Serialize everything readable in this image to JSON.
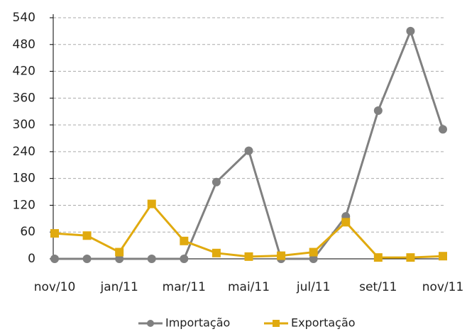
{
  "chart_data": {
    "type": "line",
    "categories": [
      "nov/10",
      null,
      "jan/11",
      null,
      "mar/11",
      null,
      "mai/11",
      null,
      "jul/11",
      null,
      "set/11",
      null,
      "nov/11"
    ],
    "series": [
      {
        "name": "Importação",
        "color": "#808080",
        "marker": "circle",
        "values": [
          0,
          0,
          0,
          0,
          0,
          172,
          242,
          0,
          0,
          95,
          332,
          510,
          290
        ]
      },
      {
        "name": "Exportação",
        "color": "#e0aa0f",
        "marker": "square",
        "values": [
          57,
          52,
          15,
          123,
          40,
          13,
          5,
          7,
          15,
          82,
          3,
          3,
          6
        ]
      }
    ],
    "ylim": [
      0,
      540
    ],
    "yticks": [
      0,
      60,
      120,
      180,
      240,
      300,
      360,
      420,
      480,
      540
    ],
    "grid": true,
    "legend": "bottom"
  }
}
